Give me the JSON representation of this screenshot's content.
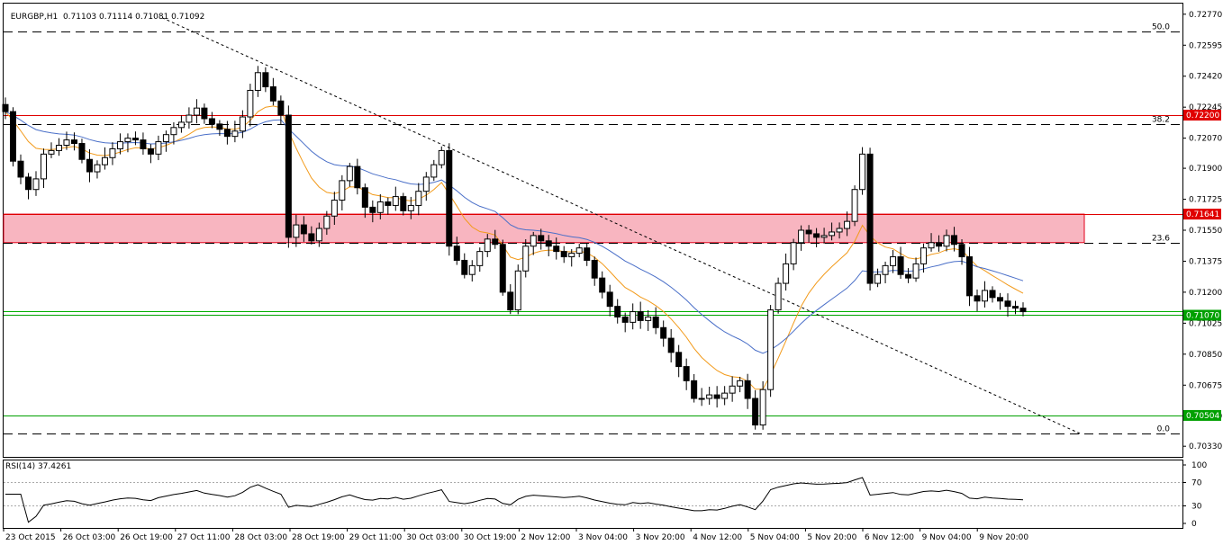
{
  "header": {
    "symbol": "EURGBP,H1",
    "ohlc": "0.71103 0.71114 0.71081 0.71092"
  },
  "rsi_panel": {
    "label": "RSI(14) 37.4261",
    "levels": [
      100,
      70,
      30,
      0
    ],
    "level_labels": [
      "100",
      "70",
      "30",
      "0"
    ]
  },
  "colors": {
    "candle_body": "#000000",
    "ma_fast": "#f29a1a",
    "ma_slow": "#4a6fc8",
    "zone_fill": "#f8b5c0",
    "zone_border": "#e0001a",
    "support_line": "#00b000",
    "resistance_line": "#e00000",
    "trendline": "#000000"
  },
  "chart_data": {
    "type": "candlestick",
    "y_axis_ticks": [
      "0.72770",
      "0.72595",
      "0.72420",
      "0.72245",
      "0.72070",
      "0.71900",
      "0.71725",
      "0.71550",
      "0.71375",
      "0.71200",
      "0.71025",
      "0.70850",
      "0.70675",
      "0.70500",
      "0.70330"
    ],
    "ylim": [
      0.7027,
      0.7283
    ],
    "x_axis_ticks": [
      "23 Oct 2015",
      "26 Oct 03:00",
      "26 Oct 19:00",
      "27 Oct 11:00",
      "28 Oct 03:00",
      "28 Oct 19:00",
      "29 Oct 11:00",
      "30 Oct 03:00",
      "30 Oct 19:00",
      "2 Nov 12:00",
      "3 Nov 04:00",
      "3 Nov 20:00",
      "4 Nov 12:00",
      "5 Nov 04:00",
      "5 Nov 20:00",
      "6 Nov 12:00",
      "9 Nov 04:00",
      "9 Nov 20:00"
    ],
    "fib_levels": [
      {
        "label": "50.0",
        "price": 0.7267
      },
      {
        "label": "38.2",
        "price": 0.7215
      },
      {
        "label": "23.6",
        "price": 0.7148
      },
      {
        "label": "0.0",
        "price": 0.704
      }
    ],
    "price_labels": [
      {
        "text": "0.72200",
        "price": 0.722,
        "color": "#e00000"
      },
      {
        "text": "0.71641",
        "price": 0.71641,
        "color": "#e00000"
      },
      {
        "text": "0.71070",
        "price": 0.7107,
        "color": "#00a000"
      },
      {
        "text": "0.70504",
        "price": 0.70504,
        "color": "#00a000"
      }
    ],
    "resistance_zone": {
      "top": 0.71641,
      "bottom": 0.7148
    },
    "trendline": {
      "start_price": 0.7275,
      "end_price": 0.704
    },
    "closes": [
      0.7222,
      0.7194,
      0.7185,
      0.7178,
      0.7184,
      0.7198,
      0.72,
      0.7203,
      0.7206,
      0.7204,
      0.7195,
      0.7188,
      0.7192,
      0.7196,
      0.7201,
      0.7205,
      0.7207,
      0.7206,
      0.7201,
      0.7198,
      0.7205,
      0.7209,
      0.7213,
      0.7216,
      0.722,
      0.7224,
      0.7218,
      0.7215,
      0.7212,
      0.7208,
      0.7211,
      0.7219,
      0.7234,
      0.7244,
      0.7236,
      0.7228,
      0.722,
      0.7151,
      0.7158,
      0.7153,
      0.7149,
      0.7156,
      0.7163,
      0.7172,
      0.7183,
      0.7191,
      0.7179,
      0.7168,
      0.7165,
      0.7171,
      0.7169,
      0.7174,
      0.7166,
      0.7169,
      0.7177,
      0.7185,
      0.7192,
      0.72,
      0.7146,
      0.7138,
      0.713,
      0.7135,
      0.7143,
      0.715,
      0.7147,
      0.712,
      0.711,
      0.7132,
      0.7146,
      0.7152,
      0.7149,
      0.7146,
      0.7143,
      0.714,
      0.7142,
      0.7145,
      0.7138,
      0.7128,
      0.712,
      0.7112,
      0.7106,
      0.7103,
      0.7109,
      0.7104,
      0.7106,
      0.71,
      0.7094,
      0.7086,
      0.7078,
      0.707,
      0.706,
      0.706,
      0.7062,
      0.706,
      0.7063,
      0.7067,
      0.707,
      0.706,
      0.7045,
      0.7065,
      0.711,
      0.7125,
      0.7136,
      0.7148,
      0.7155,
      0.7153,
      0.7151,
      0.7152,
      0.7154,
      0.7156,
      0.716,
      0.7178,
      0.7198,
      0.7125,
      0.713,
      0.7135,
      0.714,
      0.713,
      0.7128,
      0.7136,
      0.7145,
      0.7148,
      0.7146,
      0.7152,
      0.7147,
      0.714,
      0.7118,
      0.7115,
      0.7121,
      0.7117,
      0.7115,
      0.7112,
      0.7111,
      0.7109
    ]
  }
}
